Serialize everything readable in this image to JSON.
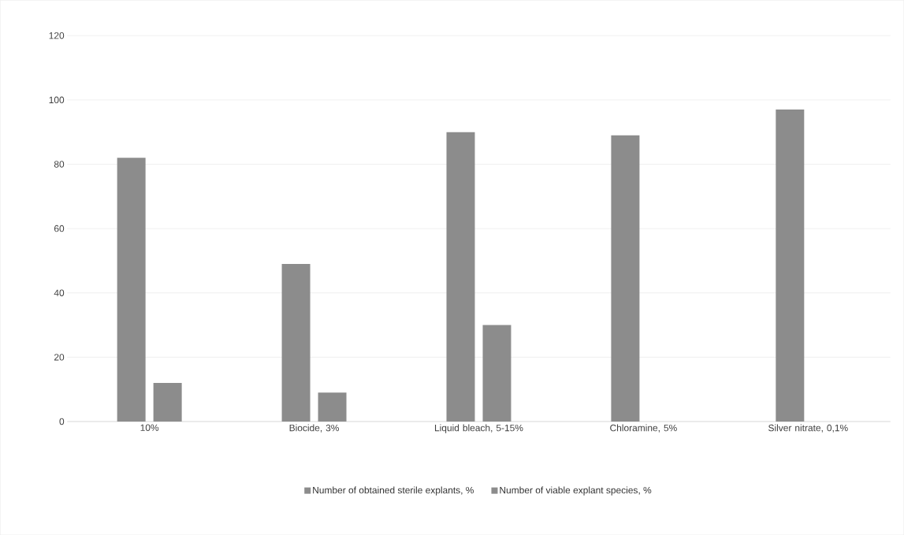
{
  "chart_data": {
    "type": "bar",
    "categories": [
      "10%",
      "Biocide, 3%",
      "Liquid bleach, 5-15%",
      "Chloramine, 5%",
      "Silver nitrate, 0,1%"
    ],
    "series": [
      {
        "name": "Number of obtained sterile explants, %",
        "color": "#8c8c8c",
        "values": [
          82,
          49,
          90,
          89,
          97
        ]
      },
      {
        "name": "Number of viable explant species, %",
        "color": "#8c8c8c",
        "values": [
          12,
          9,
          30,
          null,
          null
        ]
      }
    ],
    "ylim": [
      0,
      120
    ],
    "yticks": [
      0,
      20,
      40,
      60,
      80,
      100,
      120
    ],
    "grid": "y",
    "legend": "bottom"
  }
}
